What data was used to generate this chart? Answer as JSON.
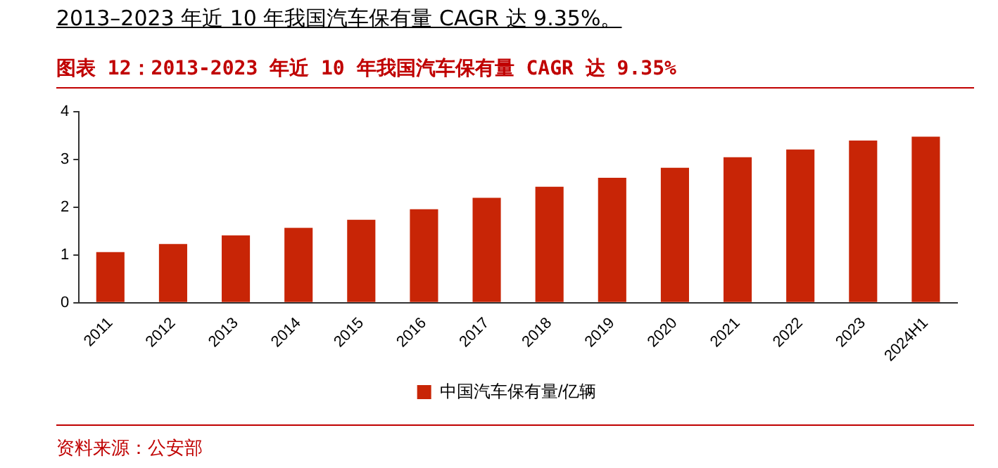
{
  "chart_data": {
    "type": "bar",
    "title": "2013–2023 年近 10 年我国汽车保有量 CAGR 达 9.35%。",
    "subtitle": "图表 12：2013-2023 年近 10 年我国汽车保有量 CAGR 达 9.35%",
    "categories": [
      "2011",
      "2012",
      "2013",
      "2014",
      "2015",
      "2016",
      "2017",
      "2018",
      "2019",
      "2020",
      "2021",
      "2022",
      "2023",
      "2024H1"
    ],
    "series": [
      {
        "name": "中国汽车保有量/亿辆",
        "color": "#c82506",
        "values": [
          1.06,
          1.23,
          1.41,
          1.57,
          1.74,
          1.96,
          2.2,
          2.43,
          2.62,
          2.83,
          3.05,
          3.21,
          3.4,
          3.48
        ]
      }
    ],
    "ylim": [
      0,
      4
    ],
    "yticks": [
      0,
      1,
      2,
      3,
      4
    ],
    "grid": false,
    "legend": "bottom",
    "annotations": [
      "资料来源：公安部"
    ]
  }
}
